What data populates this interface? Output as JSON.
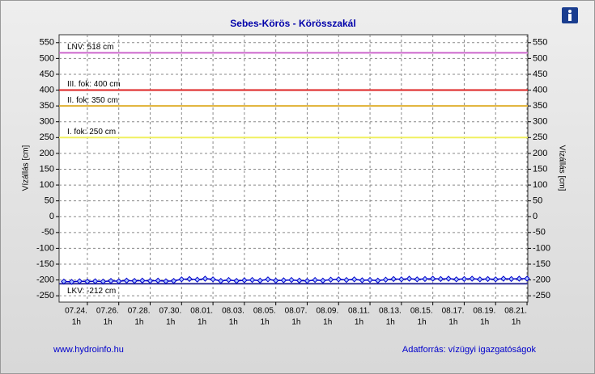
{
  "chart_data": {
    "type": "line",
    "title": "Sebes-Körös - Körösszakál",
    "ylabel": "Vízállás [cm]",
    "y2label": "Vízállás [cm]",
    "footer_left": "www.hydroinfo.hu",
    "footer_right": "Adatforrás: vízügyi igazgatóságok",
    "xlim": [
      22.2,
      52.05
    ],
    "xticks": [
      {
        "value": 24,
        "label": "07.24.",
        "hour": "1h"
      },
      {
        "value": 26,
        "label": "07.26.",
        "hour": "1h"
      },
      {
        "value": 28,
        "label": "07.28.",
        "hour": "1h"
      },
      {
        "value": 30,
        "label": "07.30.",
        "hour": "1h"
      },
      {
        "value": 32,
        "label": "08.01.",
        "hour": "1h"
      },
      {
        "value": 34,
        "label": "08.03.",
        "hour": "1h"
      },
      {
        "value": 36,
        "label": "08.05.",
        "hour": "1h"
      },
      {
        "value": 38,
        "label": "08.07.",
        "hour": "1h"
      },
      {
        "value": 40,
        "label": "08.09.",
        "hour": "1h"
      },
      {
        "value": 42,
        "label": "08.11.",
        "hour": "1h"
      },
      {
        "value": 44,
        "label": "08.13.",
        "hour": "1h"
      },
      {
        "value": 46,
        "label": "08.15.",
        "hour": "1h"
      },
      {
        "value": 48,
        "label": "08.17.",
        "hour": "1h"
      },
      {
        "value": 50,
        "label": "08.19.",
        "hour": "1h"
      },
      {
        "value": 52,
        "label": "08.21.",
        "hour": "1h"
      }
    ],
    "ylim": [
      -270,
      575
    ],
    "yticks": [
      -250,
      -200,
      -150,
      -100,
      -50,
      0,
      50,
      100,
      150,
      200,
      250,
      300,
      350,
      400,
      450,
      500,
      550
    ],
    "y2lim": [
      -270,
      575
    ],
    "y2ticks": [
      -250,
      -200,
      -150,
      -100,
      -50,
      0,
      50,
      100,
      150,
      200,
      250,
      300,
      350,
      400,
      450,
      500,
      550
    ],
    "grid": true,
    "reference_lines": [
      {
        "label": "LNV: 518 cm",
        "value": 518,
        "color": "#cc66cc"
      },
      {
        "label": "III. fok: 400 cm",
        "value": 400,
        "color": "#dd2222"
      },
      {
        "label": "II. fok: 350 cm",
        "value": 350,
        "color": "#e0b030"
      },
      {
        "label": "I. fok: 250 cm",
        "value": 250,
        "color": "#f0f060"
      },
      {
        "label": "LKV: -212 cm",
        "value": -212,
        "color": "#333399"
      }
    ],
    "x": [
      22.5,
      23,
      23.5,
      24,
      24.5,
      25,
      25.5,
      26,
      26.5,
      27,
      27.5,
      28,
      28.5,
      29,
      29.5,
      30,
      30.5,
      31,
      31.5,
      32,
      32.5,
      33,
      33.5,
      34,
      34.5,
      35,
      35.5,
      36,
      36.5,
      37,
      37.5,
      38,
      38.5,
      39,
      39.5,
      40,
      40.5,
      41,
      41.5,
      42,
      42.5,
      43,
      43.5,
      44,
      44.5,
      45,
      45.5,
      46,
      46.5,
      47,
      47.5,
      48,
      48.5,
      49,
      49.5,
      50,
      50.5,
      51,
      51.5,
      52
    ],
    "series": [
      {
        "color": "#0000cc",
        "values": [
          -205,
          -206,
          -204,
          -205,
          -204,
          -205,
          -203,
          -204,
          -202,
          -203,
          -202,
          -203,
          -202,
          -204,
          -203,
          -198,
          -197,
          -199,
          -196,
          -198,
          -203,
          -200,
          -203,
          -201,
          -200,
          -202,
          -198,
          -202,
          -201,
          -200,
          -202,
          -203,
          -200,
          -202,
          -199,
          -198,
          -200,
          -198,
          -201,
          -200,
          -202,
          -199,
          -197,
          -198,
          -196,
          -198,
          -197,
          -196,
          -197,
          -196,
          -198,
          -197,
          -196,
          -198,
          -197,
          -198,
          -196,
          -197,
          -196,
          -196
        ]
      }
    ]
  }
}
